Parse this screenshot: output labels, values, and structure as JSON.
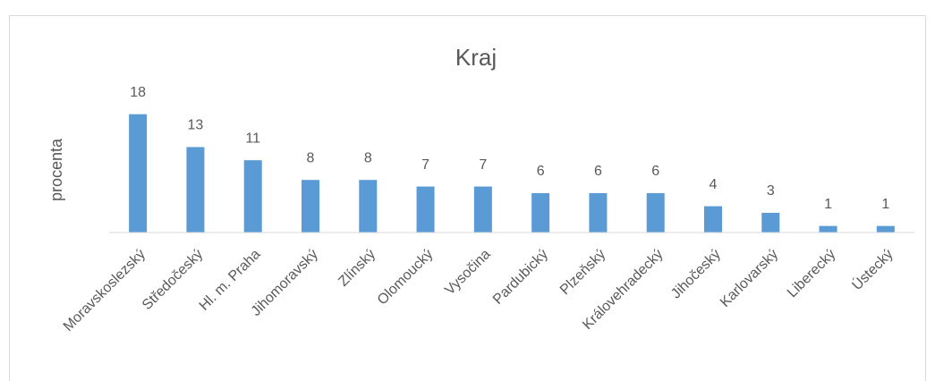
{
  "chart_data": {
    "type": "bar",
    "title": "Kraj",
    "y_label": "procenta",
    "categories": [
      "Moravskoslezský",
      "Středočeský",
      "Hl. m. Praha",
      "Jihomoravský",
      "Zlínský",
      "Olomoucký",
      "Vysočina",
      "Pardubický",
      "Plzeňský",
      "Královehradecký",
      "Jihočeský",
      "Karlovarský",
      "Liberecký",
      "Ústecký"
    ],
    "values": [
      18,
      13,
      11,
      8,
      8,
      7,
      7,
      6,
      6,
      6,
      4,
      3,
      1,
      1
    ],
    "color": "#5b9bd5",
    "ylim": [
      0,
      20
    ]
  }
}
